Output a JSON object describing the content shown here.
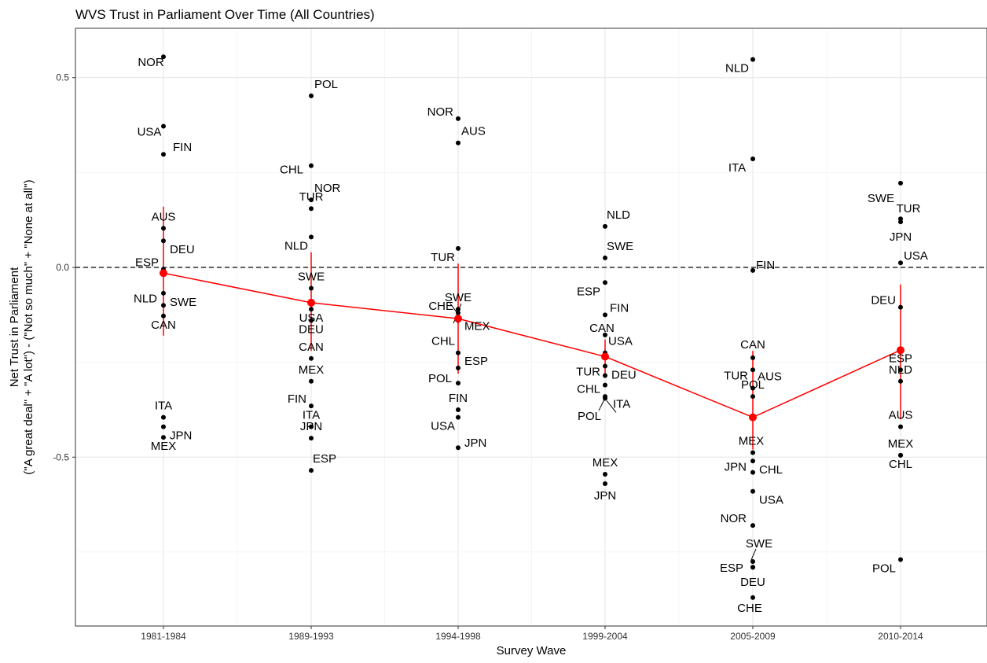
{
  "chart_data": {
    "type": "scatter",
    "title": "WVS Trust in Parliament Over Time (All Countries)",
    "xlabel": "Survey Wave",
    "ylabel_line1": "Net Trust in Parliament",
    "ylabel_line2": "(\"A great deal\" + \"A lot\") - (\"Not so much\" + \"None at all\")",
    "categories": [
      "1981-1984",
      "1989-1993",
      "1994-1998",
      "1999-2004",
      "2005-2009",
      "2010-2014"
    ],
    "yticks": [
      0.5,
      0.0,
      -0.5
    ],
    "ytick_labels": [
      "0.5",
      "0.0",
      "-0.5"
    ],
    "ylim": [
      -0.945,
      0.63
    ],
    "reference_line": 0,
    "grid": true,
    "summary_series": {
      "color": "#ff0000",
      "means": [
        -0.015,
        -0.093,
        -0.135,
        -0.235,
        -0.395,
        -0.218
      ],
      "intervals": [
        [
          -0.18,
          0.16
        ],
        [
          -0.22,
          0.04
        ],
        [
          -0.28,
          0.01
        ],
        [
          -0.29,
          -0.19
        ],
        [
          -0.48,
          -0.22
        ],
        [
          -0.4,
          -0.045
        ]
      ]
    },
    "points": [
      {
        "wave": "1981-1984",
        "country": "NOR",
        "value": 0.555
      },
      {
        "wave": "1981-1984",
        "country": "USA",
        "value": 0.372
      },
      {
        "wave": "1981-1984",
        "country": "FIN",
        "value": 0.298
      },
      {
        "wave": "1981-1984",
        "country": "AUS",
        "value": 0.103
      },
      {
        "wave": "1981-1984",
        "country": "DEU",
        "value": 0.07
      },
      {
        "wave": "1981-1984",
        "country": "ESP",
        "value": -0.005
      },
      {
        "wave": "1981-1984",
        "country": "SWE",
        "value": -0.068
      },
      {
        "wave": "1981-1984",
        "country": "NLD",
        "value": -0.1
      },
      {
        "wave": "1981-1984",
        "country": "CAN",
        "value": -0.128
      },
      {
        "wave": "1981-1984",
        "country": "ITA",
        "value": -0.395
      },
      {
        "wave": "1981-1984",
        "country": "JPN",
        "value": -0.42
      },
      {
        "wave": "1981-1984",
        "country": "MEX",
        "value": -0.448
      },
      {
        "wave": "1989-1993",
        "country": "POL",
        "value": 0.452
      },
      {
        "wave": "1989-1993",
        "country": "CHL",
        "value": 0.268
      },
      {
        "wave": "1989-1993",
        "country": "NOR",
        "value": 0.178
      },
      {
        "wave": "1989-1993",
        "country": "TUR",
        "value": 0.155
      },
      {
        "wave": "1989-1993",
        "country": "NLD",
        "value": 0.08
      },
      {
        "wave": "1989-1993",
        "country": "SWE",
        "value": -0.055
      },
      {
        "wave": "1989-1993",
        "country": "USA",
        "value": -0.11
      },
      {
        "wave": "1989-1993",
        "country": "DEU",
        "value": -0.14
      },
      {
        "wave": "1989-1993",
        "country": "CAN",
        "value": -0.24
      },
      {
        "wave": "1989-1993",
        "country": "MEX",
        "value": -0.3
      },
      {
        "wave": "1989-1993",
        "country": "FIN",
        "value": -0.365
      },
      {
        "wave": "1989-1993",
        "country": "ITA",
        "value": -0.42
      },
      {
        "wave": "1989-1993",
        "country": "JPN",
        "value": -0.45
      },
      {
        "wave": "1989-1993",
        "country": "ESP",
        "value": -0.535
      },
      {
        "wave": "1994-1998",
        "country": "NOR",
        "value": 0.392
      },
      {
        "wave": "1994-1998",
        "country": "AUS",
        "value": 0.328
      },
      {
        "wave": "1994-1998",
        "country": "TUR",
        "value": 0.05
      },
      {
        "wave": "1994-1998",
        "country": "SWE",
        "value": -0.11
      },
      {
        "wave": "1994-1998",
        "country": "CHE",
        "value": -0.12
      },
      {
        "wave": "1994-1998",
        "country": "MEX",
        "value": -0.14
      },
      {
        "wave": "1994-1998",
        "country": "CHL",
        "value": -0.225
      },
      {
        "wave": "1994-1998",
        "country": "ESP",
        "value": -0.265
      },
      {
        "wave": "1994-1998",
        "country": "POL",
        "value": -0.305
      },
      {
        "wave": "1994-1998",
        "country": "FIN",
        "value": -0.375
      },
      {
        "wave": "1994-1998",
        "country": "USA",
        "value": -0.395
      },
      {
        "wave": "1994-1998",
        "country": "JPN",
        "value": -0.475
      },
      {
        "wave": "1999-2004",
        "country": "NLD",
        "value": 0.108
      },
      {
        "wave": "1999-2004",
        "country": "SWE",
        "value": 0.025
      },
      {
        "wave": "1999-2004",
        "country": "ESP",
        "value": -0.04
      },
      {
        "wave": "1999-2004",
        "country": "FIN",
        "value": -0.125
      },
      {
        "wave": "1999-2004",
        "country": "CAN",
        "value": -0.178
      },
      {
        "wave": "1999-2004",
        "country": "USA",
        "value": -0.225
      },
      {
        "wave": "1999-2004",
        "country": "TUR",
        "value": -0.26
      },
      {
        "wave": "1999-2004",
        "country": "DEU",
        "value": -0.285
      },
      {
        "wave": "1999-2004",
        "country": "CHL",
        "value": -0.31
      },
      {
        "wave": "1999-2004",
        "country": "ITA",
        "value": -0.345
      },
      {
        "wave": "1999-2004",
        "country": "POL",
        "value": -0.34
      },
      {
        "wave": "1999-2004",
        "country": "MEX",
        "value": -0.545
      },
      {
        "wave": "1999-2004",
        "country": "JPN",
        "value": -0.57
      },
      {
        "wave": "2005-2009",
        "country": "NLD",
        "value": 0.548
      },
      {
        "wave": "2005-2009",
        "country": "ITA",
        "value": 0.286
      },
      {
        "wave": "2005-2009",
        "country": "FIN",
        "value": -0.008
      },
      {
        "wave": "2005-2009",
        "country": "CAN",
        "value": -0.238
      },
      {
        "wave": "2005-2009",
        "country": "TUR",
        "value": -0.27
      },
      {
        "wave": "2005-2009",
        "country": "AUS",
        "value": -0.318
      },
      {
        "wave": "2005-2009",
        "country": "POL",
        "value": -0.34
      },
      {
        "wave": "2005-2009",
        "country": "MEX",
        "value": -0.488
      },
      {
        "wave": "2005-2009",
        "country": "CHL",
        "value": -0.51
      },
      {
        "wave": "2005-2009",
        "country": "JPN",
        "value": -0.54
      },
      {
        "wave": "2005-2009",
        "country": "USA",
        "value": -0.59
      },
      {
        "wave": "2005-2009",
        "country": "NOR",
        "value": -0.68
      },
      {
        "wave": "2005-2009",
        "country": "SWE",
        "value": -0.775
      },
      {
        "wave": "2005-2009",
        "country": "ESP",
        "value": -0.79
      },
      {
        "wave": "2005-2009",
        "country": "DEU",
        "value": -0.79
      },
      {
        "wave": "2005-2009",
        "country": "CHE",
        "value": -0.87
      },
      {
        "wave": "2010-2014",
        "country": "SWE",
        "value": 0.222
      },
      {
        "wave": "2010-2014",
        "country": "TUR",
        "value": 0.128
      },
      {
        "wave": "2010-2014",
        "country": "JPN",
        "value": 0.12
      },
      {
        "wave": "2010-2014",
        "country": "USA",
        "value": 0.012
      },
      {
        "wave": "2010-2014",
        "country": "DEU",
        "value": -0.105
      },
      {
        "wave": "2010-2014",
        "country": "ESP",
        "value": -0.27
      },
      {
        "wave": "2010-2014",
        "country": "NLD",
        "value": -0.3
      },
      {
        "wave": "2010-2014",
        "country": "AUS",
        "value": -0.42
      },
      {
        "wave": "2010-2014",
        "country": "MEX",
        "value": -0.495
      },
      {
        "wave": "2010-2014",
        "country": "CHL",
        "value": -0.495
      },
      {
        "wave": "2010-2014",
        "country": "POL",
        "value": -0.77
      }
    ]
  }
}
